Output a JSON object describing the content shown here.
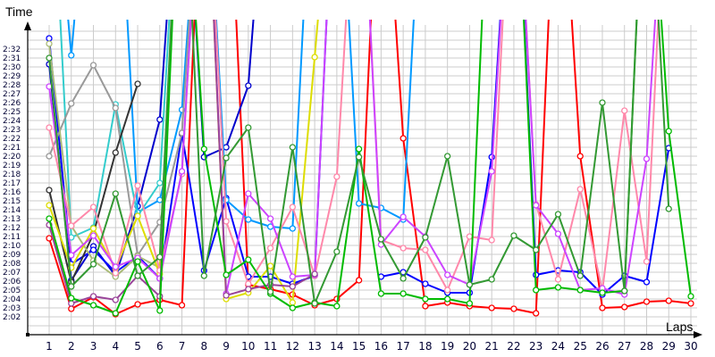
{
  "chart_data": {
    "type": "line",
    "title": "",
    "xlabel": "Laps",
    "ylabel": "Time",
    "x": [
      1,
      2,
      3,
      4,
      5,
      6,
      7,
      8,
      9,
      10,
      11,
      12,
      13,
      14,
      15,
      16,
      17,
      18,
      19,
      20,
      21,
      22,
      23,
      24,
      25,
      26,
      27,
      28,
      29,
      30
    ],
    "y_tick_labels": [
      "2:02",
      "2:03",
      "2:04",
      "2:05",
      "2:06",
      "2:07",
      "2:08",
      "2:09",
      "2:10",
      "2:11",
      "2:12",
      "2:13",
      "2:14",
      "2:15",
      "2:16",
      "2:17",
      "2:18",
      "2:19",
      "2:20",
      "2:21",
      "2:22",
      "2:23",
      "2:24",
      "2:25",
      "2:26",
      "2:27",
      "2:28",
      "2:29",
      "2:30",
      "2:31",
      "2:32"
    ],
    "ylim_seconds": [
      120,
      154
    ],
    "grid": true,
    "legend": "none",
    "units_note": "values are seconds past 2:00 (lap time); values > 34 run off the top of the plot",
    "series": [
      {
        "name": "red",
        "color": "#ff0000",
        "values": [
          10.8,
          2.9,
          4.2,
          2.3,
          3.4,
          3.9,
          3.3,
          60,
          60,
          5.6,
          5.1,
          4.5,
          3.3,
          4.0,
          6.1,
          60,
          22,
          3.2,
          3.6,
          3.2,
          3.0,
          2.9,
          2.4,
          60,
          20,
          3.0,
          3.1,
          3.7,
          3.8,
          3.5
        ]
      },
      {
        "name": "dark-blue",
        "color": "#0000cc",
        "values": [
          30.3,
          6.1,
          9.9,
          6.6,
          14.4,
          24.1,
          60,
          19.9,
          21.0,
          27.9,
          60
        ]
      },
      {
        "name": "blue",
        "color": "#0000ff",
        "values": [
          33.2,
          7.9,
          9.5,
          7.0,
          8.8,
          6.3,
          22.5,
          7.2,
          15.3,
          6.5,
          6.5,
          5.7,
          6.6,
          60,
          null,
          6.5,
          7.0,
          5.7,
          4.7,
          4.7,
          19.9,
          60,
          6.7,
          7.2,
          7.0,
          4.5,
          6.6,
          5.9,
          20.9
        ]
      },
      {
        "name": "sky-blue",
        "color": "#0099ff",
        "values": [
          60,
          31.3,
          60,
          60,
          13.7,
          15.1,
          25.2,
          60,
          15.1,
          12.9,
          12.1,
          11.9,
          60,
          60,
          14.7,
          14.2,
          12.9,
          60
        ]
      },
      {
        "name": "cyan",
        "color": "#33cccc",
        "values": [
          60,
          10.9,
          12.0,
          25.8,
          13.3,
          17.0,
          60
        ]
      },
      {
        "name": "grey",
        "color": "#999999",
        "values": [
          20.0,
          25.9,
          30.2,
          25.4,
          8.9,
          12.6,
          22.6,
          60
        ]
      },
      {
        "name": "black",
        "color": "#333333",
        "values": [
          16.2,
          5.9,
          11.3,
          20.4,
          28.1
        ]
      },
      {
        "name": "olive",
        "color": "#aabb77",
        "values": [
          32.6,
          12.2,
          8.3,
          6.5,
          8.8,
          7.5,
          60
        ]
      },
      {
        "name": "yellow",
        "color": "#dddd00",
        "values": [
          14.5,
          7.5,
          11.9,
          7.4,
          13.3,
          6.8,
          60,
          60,
          4.0,
          4.7,
          7.7,
          3.6,
          31.1,
          60
        ]
      },
      {
        "name": "pink",
        "color": "#ff88aa",
        "values": [
          23.2,
          12.2,
          14.3,
          6.9,
          16.7,
          7.2,
          18.0,
          60,
          12.7,
          5.7,
          9.7,
          14.3,
          6.6,
          17.7,
          60,
          10.6,
          9.7,
          9.5,
          5.0,
          11.0,
          10.6,
          60,
          14.6,
          6.2,
          16.3,
          4.9,
          25.1,
          8.2,
          60
        ]
      },
      {
        "name": "purple",
        "color": "#cc44ff",
        "values": [
          27.8,
          8.9,
          11.1,
          7.6,
          8.6,
          6.3,
          18.3,
          60,
          4.6,
          15.8,
          13.0,
          6.5,
          6.7,
          60,
          60,
          10.1,
          13.2,
          11.0,
          6.7,
          5.6,
          18.3,
          60,
          14.5,
          11.3,
          5.0,
          5.2,
          4.5,
          19.7,
          60
        ]
      },
      {
        "name": "violet",
        "color": "#994499",
        "values": [
          12.3,
          3.5,
          4.3,
          3.9,
          6.6,
          4.3,
          60,
          60,
          4.4,
          5.1,
          5.6,
          5.4,
          6.8
        ]
      },
      {
        "name": "green",
        "color": "#00bb00",
        "values": [
          13.0,
          4.1,
          3.3,
          2.4,
          8.2,
          2.7,
          60,
          20.8,
          6.7,
          8.4,
          4.6,
          3.0,
          3.6,
          3.2,
          20.8,
          4.6,
          4.6,
          4.0,
          4.0,
          3.5,
          60,
          60,
          5.0,
          5.3,
          5.0,
          4.7,
          4.9,
          60,
          22.8,
          4.3
        ]
      },
      {
        "name": "dark-green",
        "color": "#339933",
        "values": [
          31.0,
          5.4,
          7.9,
          15.8,
          6.6,
          8.7,
          60,
          6.6,
          19.8,
          23.2,
          4.8,
          21.0,
          3.5,
          9.3,
          19.9,
          10.7,
          6.3,
          10.9,
          20.0,
          5.6,
          6.2,
          11.1,
          9.5,
          13.5,
          6.6,
          26.0,
          4.9,
          60,
          14.1
        ]
      },
      {
        "name": "light-green",
        "color": "#66cc33",
        "values": [
          60,
          60,
          60
        ]
      }
    ]
  },
  "axes": {
    "y_title": "Time",
    "x_title": "Laps"
  }
}
